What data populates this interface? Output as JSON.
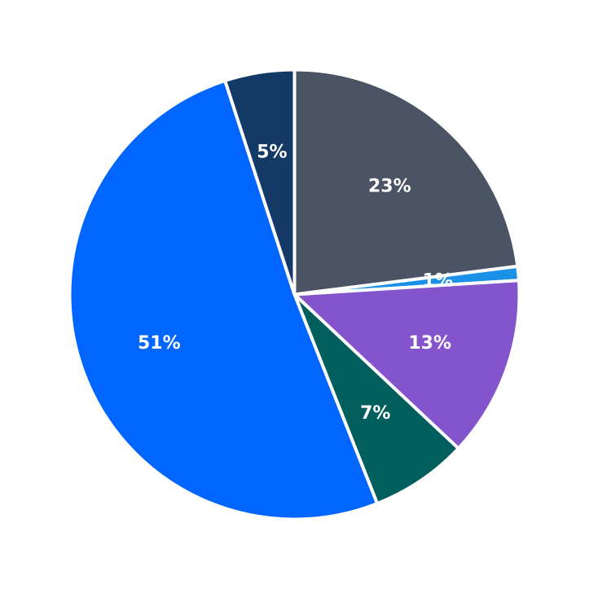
{
  "chart_data": {
    "type": "pie",
    "start": "top",
    "direction": "clockwise",
    "slices": [
      {
        "value": 23,
        "label": "23%",
        "color": "#4a5464"
      },
      {
        "value": 1,
        "label": "1%",
        "color": "#1a91e6"
      },
      {
        "value": 13,
        "label": "13%",
        "color": "#8454cc"
      },
      {
        "value": 7,
        "label": "7%",
        "color": "#005e5c"
      },
      {
        "value": 51,
        "label": "51%",
        "color": "#0066ff"
      },
      {
        "value": 5,
        "label": "5%",
        "color": "#133a66"
      }
    ]
  }
}
